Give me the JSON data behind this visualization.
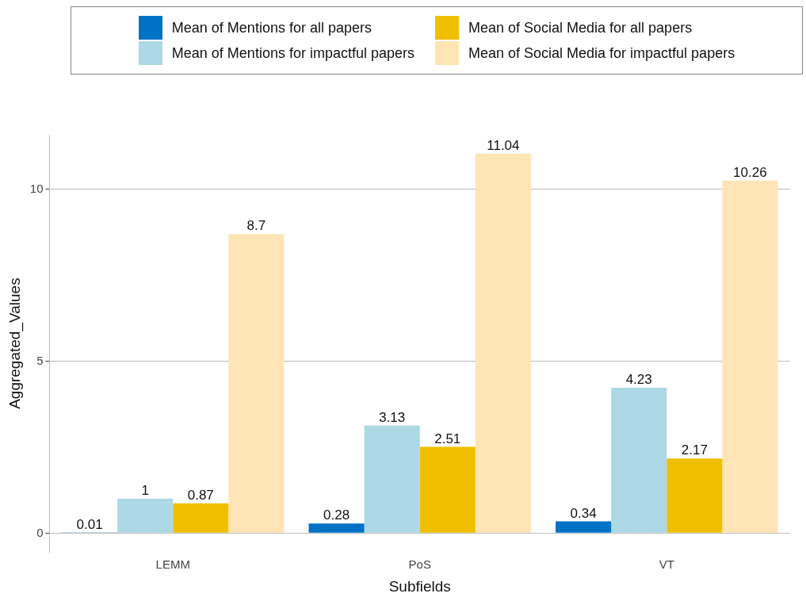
{
  "chart_data": {
    "type": "bar",
    "xlabel": "Subfields",
    "ylabel": "Aggregated_Values",
    "categories": [
      "LEMM",
      "PoS",
      "VT"
    ],
    "series": [
      {
        "name": "Mean of Mentions for all papers",
        "color": "#0072c6",
        "values": [
          0.01,
          0.28,
          0.34
        ]
      },
      {
        "name": "Mean of Mentions for impactful papers",
        "color": "#add8e6",
        "values": [
          1,
          3.13,
          4.23
        ]
      },
      {
        "name": "Mean of Social Media for all papers",
        "color": "#f0c000",
        "values": [
          0.87,
          2.51,
          2.17
        ]
      },
      {
        "name": "Mean of Social Media for impactful papers",
        "color": "#ffe4b5",
        "values": [
          8.7,
          11.04,
          10.26
        ]
      }
    ],
    "ylim": [
      -0.55,
      11.59
    ],
    "yticks": [
      0,
      5,
      10
    ],
    "grid": "y",
    "legend": "top",
    "data_labels": true
  }
}
